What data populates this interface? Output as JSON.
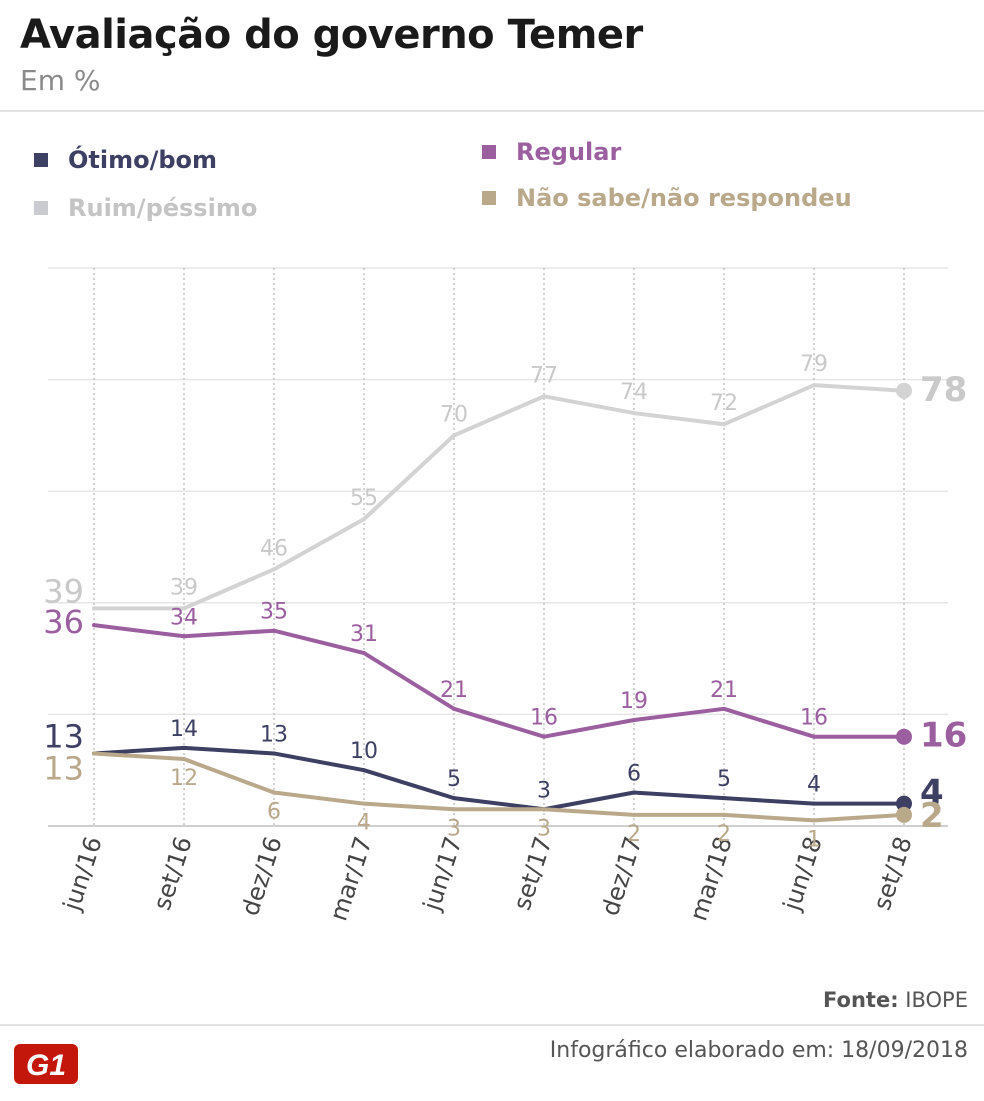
{
  "header": {
    "title": "Avaliação do governo Temer",
    "subtitle": "Em %"
  },
  "legend": [
    {
      "label": "Ótimo/bom",
      "color": "#3d3f63"
    },
    {
      "label": "Ruim/péssimo",
      "color": "#c9cbd0"
    },
    {
      "label": "Regular",
      "color": "#9b5fa0"
    },
    {
      "label": "Não sabe/não respondeu",
      "color": "#b9a88a"
    }
  ],
  "chart_data": {
    "type": "line",
    "title": "Avaliação do governo Temer",
    "ylabel": "Em %",
    "categories": [
      "jun/16",
      "set/16",
      "dez/16",
      "mar/17",
      "jun/17",
      "set/17",
      "dez/17",
      "mar/18",
      "jun/18",
      "set/18"
    ],
    "ylim": [
      0,
      100
    ],
    "grid": true,
    "series": [
      {
        "name": "Ruim/péssimo",
        "color": "#d3d3d3",
        "labelColor": "#c9c9c9",
        "values": [
          39,
          39,
          46,
          55,
          70,
          77,
          74,
          72,
          79,
          78
        ]
      },
      {
        "name": "Regular",
        "color": "#9b5fa0",
        "labelColor": "#9b5fa0",
        "values": [
          36,
          34,
          35,
          31,
          21,
          16,
          19,
          21,
          16,
          16
        ]
      },
      {
        "name": "Ótimo/bom",
        "color": "#3d3f63",
        "labelColor": "#3d3f63",
        "values": [
          13,
          14,
          13,
          10,
          5,
          3,
          6,
          5,
          4,
          4
        ]
      },
      {
        "name": "Não sabe/não respondeu",
        "color": "#b9a88a",
        "labelColor": "#b9a88a",
        "values": [
          13,
          12,
          6,
          4,
          3,
          3,
          2,
          2,
          1,
          2
        ]
      }
    ]
  },
  "footer": {
    "source_label": "Fonte:",
    "source_value": "IBOPE",
    "credit": "Infográfico elaborado em: 18/09/2018",
    "logo_text": "G1"
  }
}
